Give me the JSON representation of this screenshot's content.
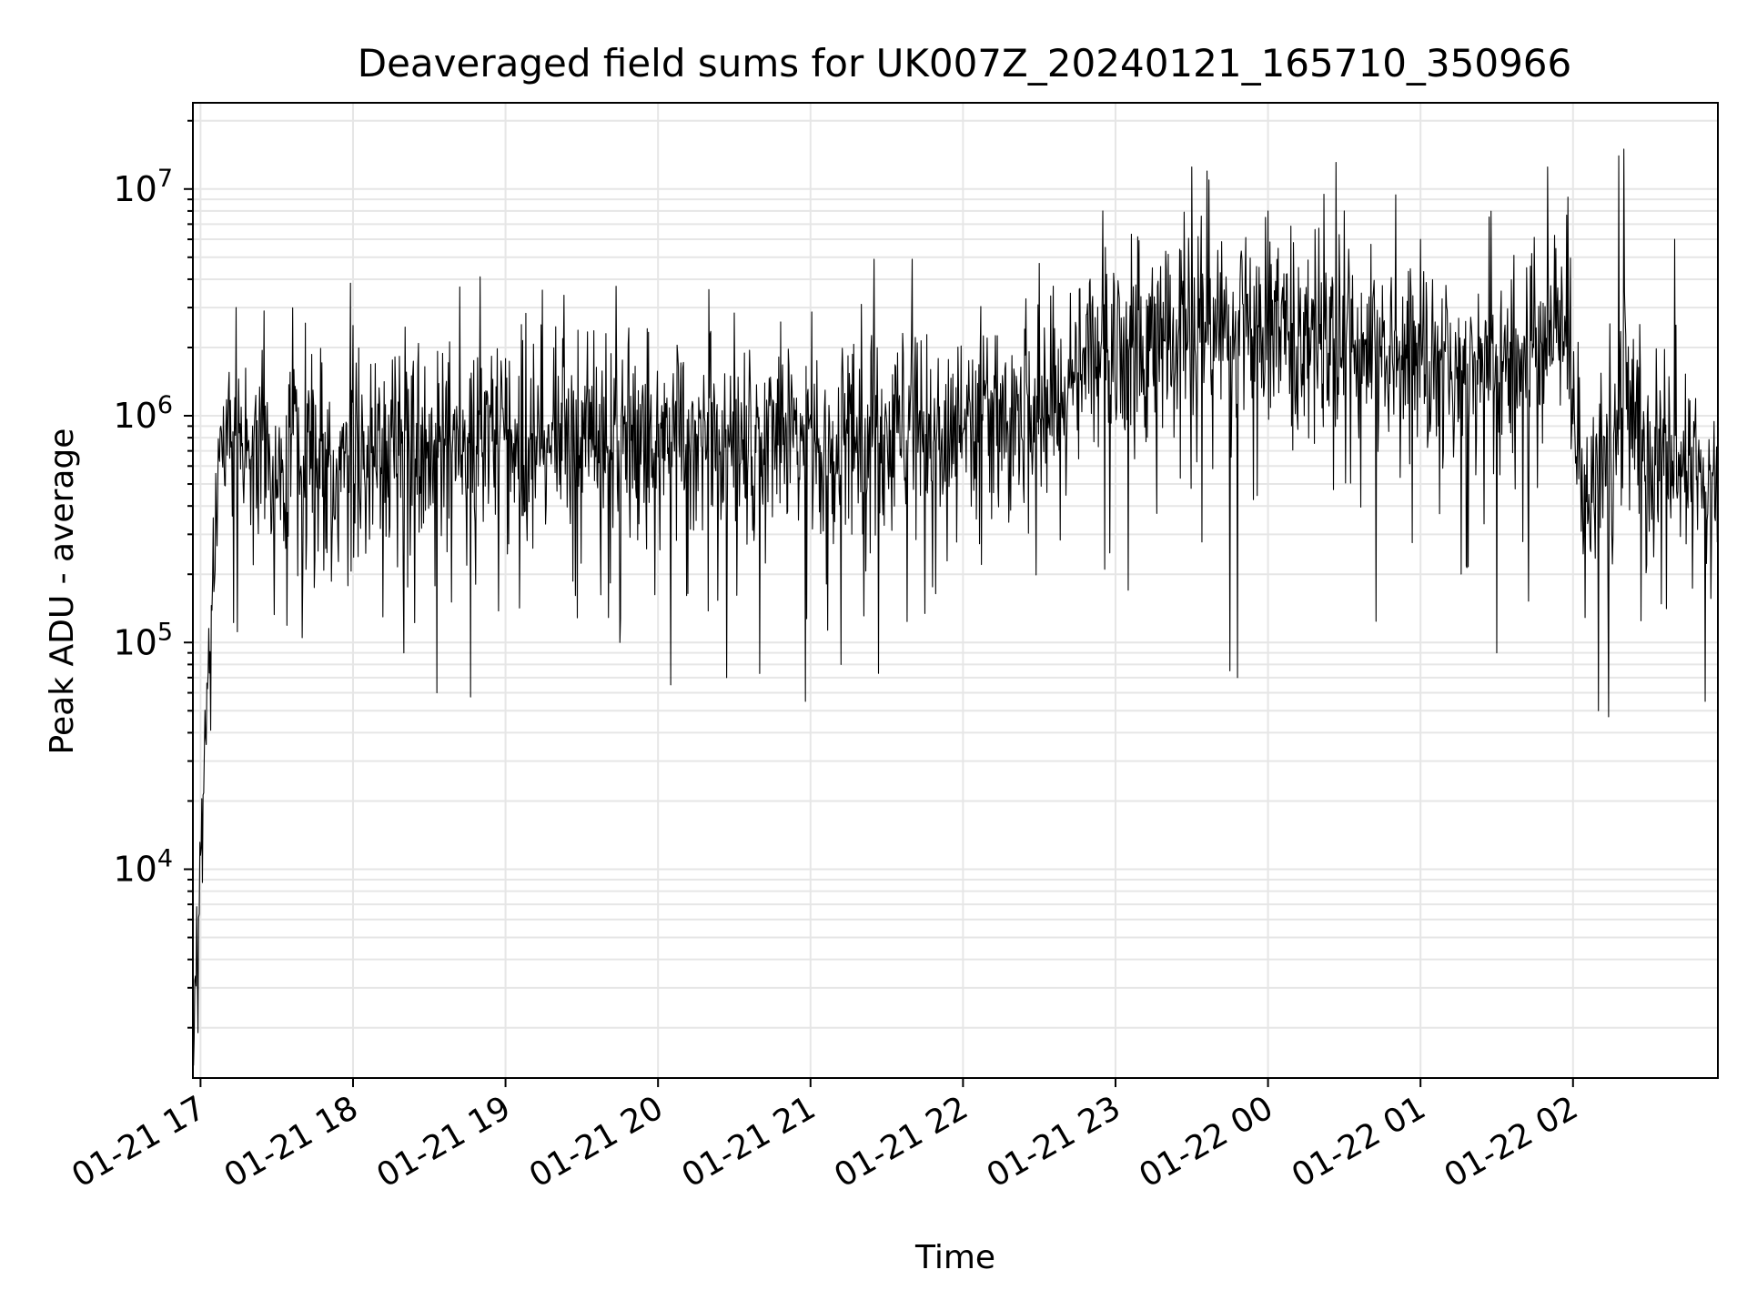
{
  "chart_data": {
    "type": "line",
    "title": "Deaveraged field sums for UK007Z_20240121_165710_350966",
    "xlabel": "Time",
    "ylabel": "Peak ADU - average",
    "yscale": "log",
    "ylim": [
      1200,
      24000000
    ],
    "xlim": [
      "2024-01-21 16:57",
      "2024-01-22 02:57"
    ],
    "grid": true,
    "legend": "none",
    "line_color": "#000000",
    "grid_color": "#e6e6e6",
    "x_ticks": [
      {
        "t": "2024-01-21 17:00",
        "label": "01-21 17"
      },
      {
        "t": "2024-01-21 18:00",
        "label": "01-21 18"
      },
      {
        "t": "2024-01-21 19:00",
        "label": "01-21 19"
      },
      {
        "t": "2024-01-21 20:00",
        "label": "01-21 20"
      },
      {
        "t": "2024-01-21 21:00",
        "label": "01-21 21"
      },
      {
        "t": "2024-01-21 22:00",
        "label": "01-21 22"
      },
      {
        "t": "2024-01-21 23:00",
        "label": "01-21 23"
      },
      {
        "t": "2024-01-22 00:00",
        "label": "01-22 00"
      },
      {
        "t": "2024-01-22 01:00",
        "label": "01-22 01"
      },
      {
        "t": "2024-01-22 02:00",
        "label": "01-22 02"
      }
    ],
    "y_ticks": [
      {
        "value": 10000,
        "base": "10",
        "exp": "4"
      },
      {
        "value": 100000,
        "base": "10",
        "exp": "5"
      },
      {
        "value": 1000000,
        "base": "10",
        "exp": "6"
      },
      {
        "value": 10000000,
        "base": "10",
        "exp": "7"
      }
    ],
    "series": [
      {
        "trend": [
          {
            "t": "2024-01-21 16:57",
            "v": 2000
          },
          {
            "t": "2024-01-21 16:59",
            "v": 5000
          },
          {
            "t": "2024-01-21 17:02",
            "v": 40000
          },
          {
            "t": "2024-01-21 17:05",
            "v": 200000
          },
          {
            "t": "2024-01-21 17:08",
            "v": 800000
          },
          {
            "t": "2024-01-21 17:15",
            "v": 750000
          },
          {
            "t": "2024-01-21 17:30",
            "v": 600000
          },
          {
            "t": "2024-01-21 18:00",
            "v": 700000
          },
          {
            "t": "2024-01-21 18:30",
            "v": 850000
          },
          {
            "t": "2024-01-21 19:00",
            "v": 850000
          },
          {
            "t": "2024-01-21 19:30",
            "v": 850000
          },
          {
            "t": "2024-01-21 20:00",
            "v": 800000
          },
          {
            "t": "2024-01-21 20:30",
            "v": 800000
          },
          {
            "t": "2024-01-21 21:00",
            "v": 750000
          },
          {
            "t": "2024-01-21 21:30",
            "v": 900000
          },
          {
            "t": "2024-01-21 22:00",
            "v": 850000
          },
          {
            "t": "2024-01-21 22:30",
            "v": 1100000
          },
          {
            "t": "2024-01-21 22:55",
            "v": 1800000
          },
          {
            "t": "2024-01-21 23:30",
            "v": 2300000
          },
          {
            "t": "2024-01-22 00:00",
            "v": 2500000
          },
          {
            "t": "2024-01-22 00:30",
            "v": 2000000
          },
          {
            "t": "2024-01-22 01:00",
            "v": 1700000
          },
          {
            "t": "2024-01-22 01:30",
            "v": 1600000
          },
          {
            "t": "2024-01-22 01:55",
            "v": 2500000
          },
          {
            "t": "2024-01-22 02:03",
            "v": 600000
          },
          {
            "t": "2024-01-22 02:15",
            "v": 600000
          },
          {
            "t": "2024-01-22 02:20",
            "v": 1500000
          },
          {
            "t": "2024-01-22 02:30",
            "v": 600000
          },
          {
            "t": "2024-01-22 02:57",
            "v": 550000
          }
        ],
        "spikes": [
          {
            "t": "2024-01-21 16:59",
            "v": 1900
          },
          {
            "t": "2024-01-21 17:04",
            "v": 41000
          },
          {
            "t": "2024-01-21 17:14",
            "v": 3000000
          },
          {
            "t": "2024-01-21 17:25",
            "v": 2900000
          },
          {
            "t": "2024-01-21 17:40",
            "v": 105000
          },
          {
            "t": "2024-01-21 18:00",
            "v": 2500000
          },
          {
            "t": "2024-01-21 18:20",
            "v": 90000
          },
          {
            "t": "2024-01-21 18:33",
            "v": 60000
          },
          {
            "t": "2024-01-21 18:42",
            "v": 3700000
          },
          {
            "t": "2024-01-21 18:50",
            "v": 4100000
          },
          {
            "t": "2024-01-21 19:23",
            "v": 3400000
          },
          {
            "t": "2024-01-21 19:45",
            "v": 100000
          },
          {
            "t": "2024-01-21 20:05",
            "v": 65000
          },
          {
            "t": "2024-01-21 20:20",
            "v": 3600000
          },
          {
            "t": "2024-01-21 20:27",
            "v": 70000
          },
          {
            "t": "2024-01-21 20:40",
            "v": 73000
          },
          {
            "t": "2024-01-21 20:58",
            "v": 55000
          },
          {
            "t": "2024-01-21 21:12",
            "v": 80000
          },
          {
            "t": "2024-01-21 21:25",
            "v": 4900000
          },
          {
            "t": "2024-01-21 21:40",
            "v": 4900000
          },
          {
            "t": "2024-01-21 22:30",
            "v": 4700000
          },
          {
            "t": "2024-01-21 22:55",
            "v": 8000000
          },
          {
            "t": "2024-01-21 23:05",
            "v": 170000
          },
          {
            "t": "2024-01-21 23:30",
            "v": 12500000
          },
          {
            "t": "2024-01-21 23:36",
            "v": 12000000
          },
          {
            "t": "2024-01-21 23:45",
            "v": 75000
          },
          {
            "t": "2024-01-21 23:48",
            "v": 70000
          },
          {
            "t": "2024-01-22 00:00",
            "v": 8000000
          },
          {
            "t": "2024-01-22 00:30",
            "v": 8000000
          },
          {
            "t": "2024-01-22 01:00",
            "v": 6000000
          },
          {
            "t": "2024-01-22 01:30",
            "v": 90000
          },
          {
            "t": "2024-01-22 01:50",
            "v": 12500000
          },
          {
            "t": "2024-01-22 02:10",
            "v": 50000
          },
          {
            "t": "2024-01-22 02:14",
            "v": 47000
          },
          {
            "t": "2024-01-22 02:18",
            "v": 14000000
          },
          {
            "t": "2024-01-22 02:20",
            "v": 15000000
          },
          {
            "t": "2024-01-22 02:40",
            "v": 6000000
          },
          {
            "t": "2024-01-22 02:52",
            "v": 55000
          }
        ]
      }
    ]
  }
}
